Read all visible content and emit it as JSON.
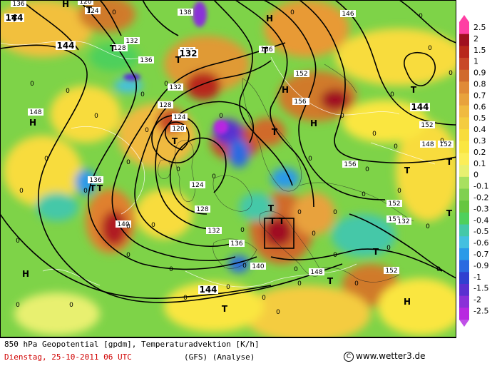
{
  "footer": {
    "caption": "850 hPa Geopotential [gpdm], Temperaturadvektion [K/h]",
    "date": "Dienstag, 25-10-2011  06 UTC",
    "model": "(GFS)  (Analyse)",
    "copyright_symbol": "C",
    "source": "www.wetter3.de"
  },
  "legend": {
    "labels": [
      "2.5",
      "2",
      "1.5",
      "1",
      "0.9",
      "0.8",
      "0.7",
      "0.6",
      "0.5",
      "0.4",
      "0.3",
      "0.2",
      "0.1",
      "0",
      "-0.1",
      "-0.2",
      "-0.3",
      "-0.4",
      "-0.5",
      "-0.6",
      "-0.7",
      "-0.9",
      "-1",
      "-1.5",
      "-2",
      "-2.5"
    ],
    "colors": [
      "#ff3fa3",
      "#a01020",
      "#b8281c",
      "#c84828",
      "#d06a2c",
      "#e08a36",
      "#e8a23c",
      "#f0ba40",
      "#f4cc40",
      "#f8dc3c",
      "#fae640",
      "#fcee58",
      "#e8f070",
      "#a8e060",
      "#80d050",
      "#66c640",
      "#4ed05c",
      "#44c8a8",
      "#44c0e0",
      "#2a9ae8",
      "#2a6ae0",
      "#3040d0",
      "#5a30d0",
      "#8a30d8",
      "#b828e0",
      "#c050e8"
    ]
  },
  "map": {
    "contour_labels": [
      {
        "text": "136"
      },
      {
        "text": "124"
      },
      {
        "text": "120"
      },
      {
        "text": "136"
      },
      {
        "text": "138"
      },
      {
        "text": "132"
      },
      {
        "text": "128"
      },
      {
        "text": "136"
      },
      {
        "text": "132"
      },
      {
        "text": "146"
      },
      {
        "text": "148"
      },
      {
        "text": "136"
      },
      {
        "text": "132"
      },
      {
        "text": "128"
      },
      {
        "text": "124"
      },
      {
        "text": "120"
      },
      {
        "text": "136"
      },
      {
        "text": "152"
      },
      {
        "text": "156"
      },
      {
        "text": "152"
      },
      {
        "text": "156"
      },
      {
        "text": "152"
      },
      {
        "text": "152"
      },
      {
        "text": "132"
      },
      {
        "text": "124"
      },
      {
        "text": "128"
      },
      {
        "text": "132"
      },
      {
        "text": "136"
      },
      {
        "text": "140"
      },
      {
        "text": "140"
      },
      {
        "text": "148"
      },
      {
        "text": "152"
      },
      {
        "text": "156"
      },
      {
        "text": "148"
      },
      {
        "text": "152"
      }
    ],
    "bold_labels": [
      {
        "text": "144"
      },
      {
        "text": "144"
      },
      {
        "text": "144"
      },
      {
        "text": "144"
      },
      {
        "text": "132"
      }
    ],
    "pressure_centers": [
      {
        "text": "T"
      },
      {
        "text": "T"
      },
      {
        "text": "T"
      },
      {
        "text": "T"
      },
      {
        "text": "T"
      },
      {
        "text": "T"
      },
      {
        "text": "T"
      },
      {
        "text": "T"
      },
      {
        "text": "T"
      },
      {
        "text": "T"
      },
      {
        "text": "T"
      },
      {
        "text": "T"
      },
      {
        "text": "T"
      },
      {
        "text": "T"
      },
      {
        "text": "T"
      },
      {
        "text": "T"
      },
      {
        "text": "T"
      },
      {
        "text": "T"
      },
      {
        "text": "T"
      },
      {
        "text": "H"
      },
      {
        "text": "H"
      },
      {
        "text": "H"
      },
      {
        "text": "H"
      },
      {
        "text": "H"
      },
      {
        "text": "H"
      },
      {
        "text": "H"
      }
    ],
    "zero_labels": {
      "text": "0"
    },
    "highlight_box": {
      "stroke": "#000000"
    }
  },
  "colors": {
    "map_green": "#7ed348",
    "contour": "#000000"
  }
}
